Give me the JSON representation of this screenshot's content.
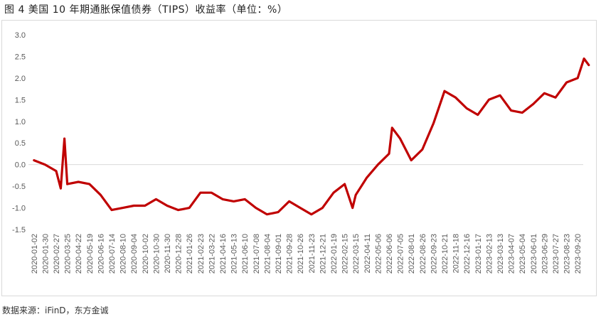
{
  "title": "图 4  美国 10 年期通胀保值债券（TIPS）收益率（单位：%）",
  "source": "数据来源：iFinD，东方金诚",
  "colors": {
    "line": "#c00000",
    "axis": "#d9d9d9",
    "text": "#595959"
  },
  "chart_data": {
    "type": "line",
    "title": "",
    "xlabel": "",
    "ylabel": "",
    "ylim": [
      -1.5,
      3.0
    ],
    "yticks": [
      3.0,
      2.5,
      2.0,
      1.5,
      1.0,
      0.5,
      0.0,
      -0.5,
      -1.0,
      -1.5
    ],
    "ytick_labels": [
      "3.0",
      "2.5",
      "2.0",
      "1.5",
      "1.0",
      "0.5",
      "0.0",
      "-0.5",
      "-1.0",
      "-1.5"
    ],
    "x_tick_labels": [
      "2020-01-02",
      "2020-01-30",
      "2020-02-27",
      "2020-03-25",
      "2020-04-22",
      "2020-05-19",
      "2020-06-16",
      "2020-07-14",
      "2020-08-10",
      "2020-09-04",
      "2020-10-02",
      "2020-10-30",
      "2020-11-30",
      "2020-12-28",
      "2021-01-26",
      "2021-02-23",
      "2021-03-22",
      "2021-04-16",
      "2021-05-13",
      "2021-06-10",
      "2021-07-08",
      "2021-08-04",
      "2021-09-01",
      "2021-09-28",
      "2021-10-26",
      "2021-11-23",
      "2021-12-21",
      "2022-01-19",
      "2022-02-15",
      "2022-03-15",
      "2022-04-11",
      "2022-05-06",
      "2022-06-06",
      "2022-07-05",
      "2022-08-01",
      "2022-08-26",
      "2022-09-23",
      "2022-10-21",
      "2022-11-18",
      "2022-12-16",
      "2023-01-17",
      "2023-02-13",
      "2023-03-13",
      "2023-04-07",
      "2023-05-04",
      "2023-06-01",
      "2023-06-29",
      "2023-07-27",
      "2023-08-23",
      "2023-09-20"
    ],
    "grid": false,
    "legend": "none",
    "series": [
      {
        "color": "#c00000",
        "x": [
          "2020-01-02",
          "2020-01-30",
          "2020-02-27",
          "2020-03-09",
          "2020-03-18",
          "2020-03-25",
          "2020-04-22",
          "2020-05-19",
          "2020-06-16",
          "2020-07-14",
          "2020-08-10",
          "2020-09-04",
          "2020-10-02",
          "2020-10-30",
          "2020-11-30",
          "2020-12-28",
          "2021-01-26",
          "2021-02-23",
          "2021-03-22",
          "2021-04-16",
          "2021-05-13",
          "2021-06-10",
          "2021-07-08",
          "2021-08-04",
          "2021-09-01",
          "2021-09-28",
          "2021-10-26",
          "2021-11-23",
          "2021-12-21",
          "2022-01-19",
          "2022-02-15",
          "2022-03-07",
          "2022-03-15",
          "2022-04-11",
          "2022-05-06",
          "2022-06-06",
          "2022-06-14",
          "2022-07-05",
          "2022-08-01",
          "2022-08-26",
          "2022-09-23",
          "2022-10-21",
          "2022-11-18",
          "2022-12-16",
          "2023-01-17",
          "2023-02-13",
          "2023-03-13",
          "2023-04-07",
          "2023-05-04",
          "2023-06-01",
          "2023-06-29",
          "2023-07-27",
          "2023-08-23",
          "2023-09-20",
          "2023-10-06",
          "2023-10-18"
        ],
        "y": [
          0.1,
          0.0,
          -0.15,
          -0.55,
          0.6,
          -0.45,
          -0.4,
          -0.45,
          -0.7,
          -1.05,
          -1.0,
          -0.95,
          -0.95,
          -0.8,
          -0.95,
          -1.05,
          -1.0,
          -0.65,
          -0.65,
          -0.8,
          -0.85,
          -0.8,
          -1.0,
          -1.15,
          -1.1,
          -0.85,
          -1.0,
          -1.15,
          -1.0,
          -0.65,
          -0.45,
          -1.0,
          -0.7,
          -0.3,
          0.0,
          0.25,
          0.85,
          0.6,
          0.1,
          0.35,
          0.95,
          1.7,
          1.55,
          1.3,
          1.15,
          1.5,
          1.6,
          1.25,
          1.2,
          1.4,
          1.65,
          1.55,
          1.9,
          2.0,
          2.45,
          2.3
        ]
      }
    ]
  }
}
